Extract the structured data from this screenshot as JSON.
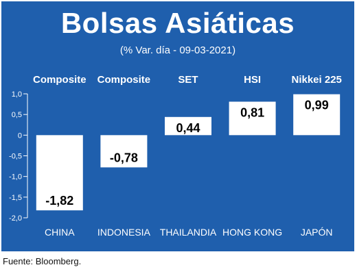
{
  "header": {
    "title": "Bolsas Asiáticas",
    "subtitle": "(% Var. día - 09-03-2021)"
  },
  "colors": {
    "panel": "#1f5fad",
    "bar": "#ffffff",
    "text": "#ffffff",
    "label_text": "#000000"
  },
  "chart_data": {
    "type": "bar",
    "title": "Bolsas Asiáticas",
    "subtitle": "(% Var. día - 09-03-2021)",
    "categories": [
      "CHINA",
      "INDONESIA",
      "THAILANDIA",
      "HONG KONG",
      "JAPÓN"
    ],
    "index_names": [
      "Composite",
      "Composite",
      "SET",
      "HSI",
      "Nikkei 225"
    ],
    "values": [
      -1.82,
      -0.78,
      0.44,
      0.81,
      0.99
    ],
    "value_labels": [
      "-1,82",
      "-0,78",
      "0,44",
      "0,81",
      "0,99"
    ],
    "ylim": [
      -2.0,
      1.0
    ],
    "yticks": [
      1.0,
      0.5,
      0,
      -0.5,
      -1.0,
      -1.5,
      -2.0
    ],
    "ytick_labels": [
      "1,0",
      "0,5",
      "0",
      "-0,5",
      "-1,0",
      "-1,5",
      "-2,0"
    ],
    "grid": false,
    "legend": "none"
  },
  "footer": {
    "source": "Fuente: Bloomberg."
  }
}
